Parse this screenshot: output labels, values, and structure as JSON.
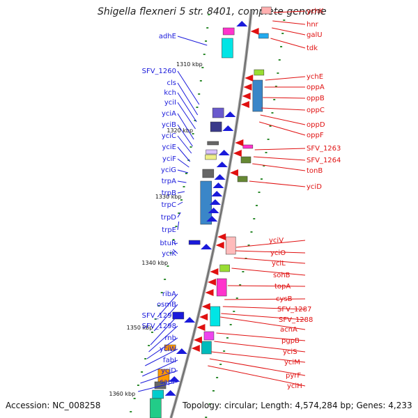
{
  "title": "Shigella flexneri 5 str. 8401, complete genome",
  "footer": {
    "accession": "Accession: NC_008258",
    "summary": "Topology: circular; Length: 4,574,284 bp; Genes: 4,233"
  },
  "kbp_labels": [
    "1310 kbp",
    "1320 kbp",
    "1330 kbp",
    "1340 kbp",
    "1350 kbp",
    "1360 kbp"
  ],
  "left_genes": [
    "adhE",
    "SFV_1260",
    "cls",
    "kch",
    "yciI",
    "yciA",
    "yciB",
    "yciC",
    "yciE",
    "yciF",
    "yciG",
    "trpA",
    "trpB",
    "trpC",
    "trpD",
    "trpE",
    "btuR",
    "yciK",
    "ribA",
    "osmB",
    "SFV_1297",
    "SFV_1298",
    "rnb",
    "yciW",
    "fabI",
    "ycjD",
    "sapF"
  ],
  "right_genes": [
    "ychK",
    "hnr",
    "galU",
    "tdk",
    "ychE",
    "oppA",
    "oppB",
    "oppC",
    "oppD",
    "oppF",
    "SFV_1263",
    "SFV_1264",
    "tonB",
    "yciD",
    "yciV",
    "yciO",
    "yciL",
    "sohB",
    "topA",
    "cysB",
    "SFV_1287",
    "SFV_1288",
    "acnA",
    "pgpB",
    "yciS",
    "yciM",
    "pyrF",
    "yciH"
  ],
  "colors": {
    "backbone": "#888888",
    "left_label": "#1a1adb",
    "right_label": "#e01010",
    "tick": "#2e8b2e"
  }
}
